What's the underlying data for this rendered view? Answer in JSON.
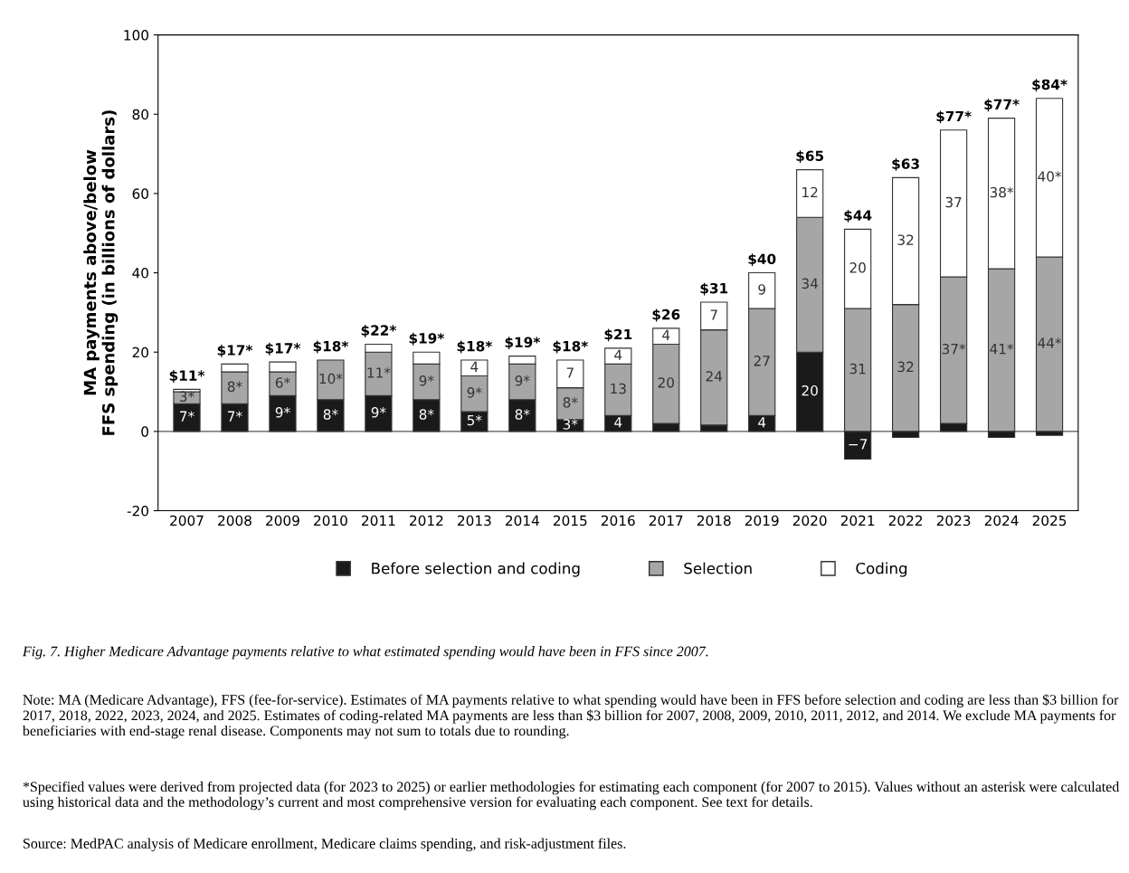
{
  "chart_data": {
    "type": "bar",
    "stacked": true,
    "ylabel": "MA payments above/below\nFFS spending (in billions of dollars)",
    "categories": [
      "2007",
      "2008",
      "2009",
      "2010",
      "2011",
      "2012",
      "2013",
      "2014",
      "2015",
      "2016",
      "2017",
      "2018",
      "2019",
      "2020",
      "2021",
      "2022",
      "2023",
      "2024",
      "2025"
    ],
    "series": [
      {
        "name": "Before selection and coding",
        "color": "#1a1a1a",
        "values": [
          7,
          7,
          9,
          8,
          9,
          8,
          5,
          8,
          3,
          4,
          2,
          1.6,
          4,
          20,
          -7,
          -1.5,
          2,
          -1.5,
          -1
        ],
        "value_labels": [
          "7*",
          "7*",
          "9*",
          "8*",
          "9*",
          "8*",
          "5*",
          "8*",
          "3*",
          "4",
          null,
          null,
          "4",
          "20",
          "−7",
          null,
          null,
          null,
          null
        ]
      },
      {
        "name": "Selection",
        "color": "#a6a6a6",
        "values": [
          3,
          8,
          6,
          10,
          11,
          9,
          9,
          9,
          8,
          13,
          20,
          24,
          27,
          34,
          31,
          32,
          37,
          41,
          44
        ],
        "value_labels": [
          "3*",
          "8*",
          "6*",
          "10*",
          "11*",
          "9*",
          "9*",
          "9*",
          "8*",
          "13",
          "20",
          "24",
          "27",
          "34",
          "31",
          "32",
          "37*",
          "41*",
          "44*"
        ]
      },
      {
        "name": "Coding",
        "color": "#ffffff",
        "values": [
          0.6,
          2,
          2.5,
          null,
          2,
          3,
          4,
          2,
          7,
          4,
          4,
          7,
          9,
          12,
          20,
          32,
          37,
          38,
          40
        ],
        "value_labels": [
          null,
          null,
          null,
          null,
          null,
          null,
          "4",
          null,
          "7",
          "4",
          "4",
          "7",
          "9",
          "12",
          "20",
          "32",
          "37",
          "38*",
          "40*"
        ]
      }
    ],
    "totals": [
      "$11*",
      "$17*",
      "$17*",
      "$18*",
      "$22*",
      "$19*",
      "$18*",
      "$19*",
      "$18*",
      "$21",
      "$26",
      "$31",
      "$40",
      "$65",
      "$44",
      "$63",
      "$77*",
      "$77*",
      "$84*"
    ],
    "ylim": [
      -20,
      100
    ],
    "yticks": [
      -20,
      0,
      20,
      40,
      60,
      80,
      100
    ],
    "grid": false,
    "ref_lines": [
      {
        "axis": "y",
        "value": 0,
        "color": "#555555"
      }
    ],
    "legend": "bottom",
    "marker": "square",
    "annotations": [
      "Fig. 7. Higher Medicare Advantage payments relative to what estimated spending would have been in FFS since 2007.",
      "Note: MA (Medicare Advantage), FFS (fee-for-service). Estimates of MA payments relative to what spending would have been in FFS before selection and coding are less than $3 billion for 2017, 2018, 2022, 2023, 2024, and 2025. Estimates of coding-related MA payments are less than $3 billion for 2007, 2008, 2009, 2010, 2011, 2012, and 2014. We exclude MA payments for beneficiaries with end-stage renal disease. Components may not sum to totals due to rounding.",
      "*Specified values were derived from projected data (for 2023 to 2025) or earlier methodologies for estimating each component (for 2007 to 2015). Values without an asterisk were calculated using historical data and the methodology’s current and most comprehensive version for evaluating each component. See text for details.",
      "Source: MedPAC analysis of Medicare enrollment, Medicare claims spending, and risk-adjustment files."
    ]
  }
}
